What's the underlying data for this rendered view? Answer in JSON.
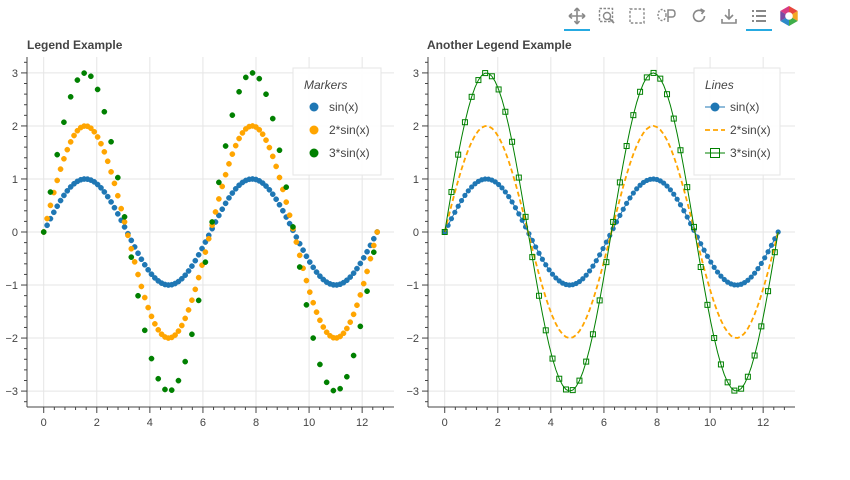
{
  "toolbar": {
    "tools": [
      {
        "name": "pan-tool",
        "icon": "pan-icon",
        "active": true
      },
      {
        "name": "box-zoom-tool",
        "icon": "box-zoom-icon",
        "active": false
      },
      {
        "name": "box-select-tool",
        "icon": "box-select-icon",
        "active": false
      },
      {
        "name": "lasso-select-tool",
        "icon": "lasso-select-icon",
        "active": false
      },
      {
        "name": "reset-tool",
        "icon": "reset-icon",
        "active": false
      },
      {
        "name": "save-tool",
        "icon": "save-icon",
        "active": false
      },
      {
        "name": "legend-tool",
        "icon": "legend-icon",
        "active": true
      },
      {
        "name": "bokeh-logo",
        "icon": "bokeh-logo-icon",
        "active": false
      }
    ]
  },
  "colors": {
    "series1": "#1f77b4",
    "series2": "#ffa500",
    "series3": "#008000",
    "grid": "#e5e5e5",
    "axis": "#444444",
    "title": "#444444"
  },
  "chart_data": [
    {
      "type": "scatter",
      "title": "Legend Example",
      "xlabel": "",
      "ylabel": "",
      "xlim": [
        -0.63,
        13.2
      ],
      "ylim": [
        -3.3,
        3.3
      ],
      "x_ticks": [
        0,
        2,
        4,
        6,
        8,
        10,
        12
      ],
      "y_ticks": [
        -3,
        -2,
        -1,
        0,
        1,
        2,
        3
      ],
      "grid": true,
      "legend": {
        "title": "Markers",
        "position": "top-right"
      },
      "x": {
        "start": 0,
        "stop": 12.566,
        "count": 100
      },
      "series": [
        {
          "name": "sin(x)",
          "amplitude": 1,
          "style": "circle",
          "color": "#1f77b4"
        },
        {
          "name": "2*sin(x)",
          "amplitude": 2,
          "style": "circle",
          "color": "#ffa500"
        },
        {
          "name": "3*sin(x)",
          "amplitude": 3,
          "style": "circle-sparse",
          "color": "#008000"
        }
      ]
    },
    {
      "type": "line",
      "title": "Another Legend Example",
      "xlabel": "",
      "ylabel": "",
      "xlim": [
        -0.63,
        13.2
      ],
      "ylim": [
        -3.3,
        3.3
      ],
      "x_ticks": [
        0,
        2,
        4,
        6,
        8,
        10,
        12
      ],
      "y_ticks": [
        -3,
        -2,
        -1,
        0,
        1,
        2,
        3
      ],
      "grid": true,
      "legend": {
        "title": "Lines",
        "position": "top-right"
      },
      "x": {
        "start": 0,
        "stop": 12.566,
        "count": 100
      },
      "series": [
        {
          "name": "sin(x)",
          "amplitude": 1,
          "style": "line-circle",
          "color": "#1f77b4"
        },
        {
          "name": "2*sin(x)",
          "amplitude": 2,
          "style": "dashed",
          "color": "#ffa500"
        },
        {
          "name": "3*sin(x)",
          "amplitude": 3,
          "style": "line-square",
          "color": "#008000"
        }
      ]
    }
  ]
}
